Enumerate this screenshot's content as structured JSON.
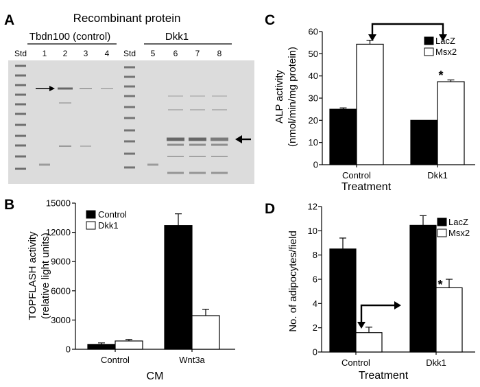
{
  "panels": {
    "A": "A",
    "B": "B",
    "C": "C",
    "D": "D"
  },
  "gel": {
    "title": "Recombinant protein",
    "group_left": "Tbdn100 (control)",
    "group_right": "Dkk1",
    "lanes_left": [
      "Std",
      "1",
      "2",
      "3",
      "4"
    ],
    "lanes_right": [
      "Std",
      "5",
      "6",
      "7",
      "8"
    ],
    "colors": {
      "background": "#dcdcdc",
      "band": "#5a5a5a"
    }
  },
  "chart_data": [
    {
      "panel": "B",
      "type": "bar",
      "categories": [
        "Control",
        "Wnt3a"
      ],
      "series": [
        {
          "name": "Control",
          "values": [
            500,
            12700
          ],
          "errors": [
            150,
            1200
          ],
          "color": "#000000"
        },
        {
          "name": "Dkk1",
          "values": [
            850,
            3450
          ],
          "errors": [
            150,
            650
          ],
          "color": "#ffffff"
        }
      ],
      "title": "",
      "xlabel": "CM",
      "ylabel": "TOPFLASH activity\n(relative light units)",
      "yticks": [
        "0",
        "3000",
        "6000",
        "9000",
        "12000",
        "15000"
      ],
      "ylim": [
        0,
        15000
      ],
      "legend": "top-left",
      "grid": false,
      "annotations": []
    },
    {
      "panel": "C",
      "type": "bar",
      "categories": [
        "Control",
        "Dkk1"
      ],
      "series": [
        {
          "name": "LacZ",
          "values": [
            25,
            20
          ],
          "errors": [
            0.6,
            0
          ],
          "color": "#000000"
        },
        {
          "name": "Msx2",
          "values": [
            54.3,
            37.4
          ],
          "errors": [
            1.8,
            0.8
          ],
          "color": "#ffffff"
        }
      ],
      "title": "",
      "xlabel": "Treatment",
      "ylabel": "ALP activity\n(nmol/min/mg protein)",
      "yticks": [
        "0",
        "10",
        "20",
        "30",
        "40",
        "50",
        "60"
      ],
      "ylim": [
        0,
        60
      ],
      "legend": "top-right",
      "grid": false,
      "annotations": [
        "*"
      ]
    },
    {
      "panel": "D",
      "type": "bar",
      "categories": [
        "Control",
        "Dkk1"
      ],
      "series": [
        {
          "name": "LacZ",
          "values": [
            8.5,
            10.45
          ],
          "errors": [
            0.9,
            0.8
          ],
          "color": "#000000"
        },
        {
          "name": "Msx2",
          "values": [
            1.6,
            5.3
          ],
          "errors": [
            0.45,
            0.7
          ],
          "color": "#ffffff"
        }
      ],
      "title": "",
      "xlabel": "Treatment",
      "ylabel": "No. of adipocytes/field",
      "yticks": [
        "0",
        "2",
        "4",
        "6",
        "8",
        "10",
        "12"
      ],
      "ylim": [
        0,
        12
      ],
      "legend": "top-right",
      "grid": false,
      "annotations": [
        "*"
      ]
    }
  ]
}
